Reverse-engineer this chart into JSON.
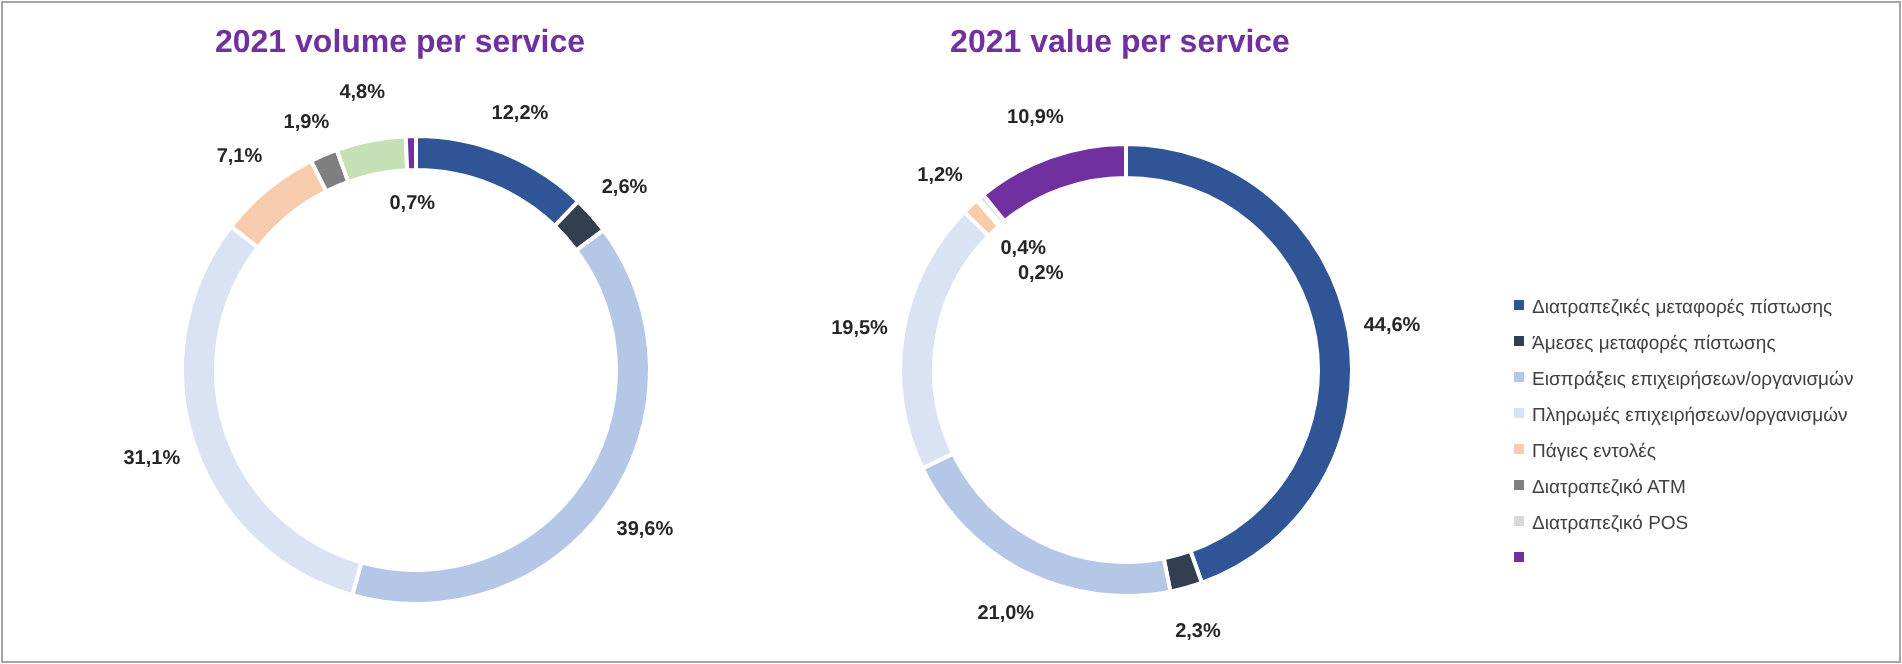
{
  "chart_data": [
    {
      "type": "donut",
      "title": "2021 volume per service",
      "categories": [
        null,
        null,
        null,
        null,
        null,
        null,
        null,
        null
      ],
      "values": [
        12.2,
        2.6,
        39.6,
        31.1,
        7.1,
        1.9,
        4.8,
        0.7
      ],
      "value_labels": [
        "12,2%",
        "2,6%",
        "39,6%",
        "31,1%",
        "7,1%",
        "1,9%",
        "4,8%",
        "0,7%"
      ],
      "colors": [
        "#2f5597",
        "#333f50",
        "#b4c7e7",
        "#dae3f3",
        "#f8cbad",
        "#7f7f7f",
        "#c5e0b4",
        "#7030a0"
      ],
      "legend": false
    },
    {
      "type": "donut",
      "title": "2021 value per service",
      "categories": [
        "Διατραπεζικές μεταφορές πίστωσης",
        "Άμεσες μεταφορές πίστωσης",
        "Εισπράξεις επιχειρήσεων/οργανισμών",
        "Πληρωμές επιχειρήσεων/οργανισμών",
        "Πάγιες εντολές",
        "Διατραπεζικό ΑΤΜ",
        "Διατραπεζικό POS",
        null
      ],
      "values": [
        44.6,
        2.3,
        21.0,
        19.5,
        1.2,
        0.2,
        0.4,
        10.9
      ],
      "value_labels": [
        "44,6%",
        "2,3%",
        "21,0%",
        "19,5%",
        "1,2%",
        "0,2%",
        "0,4%",
        "10,9%"
      ],
      "colors": [
        "#2f5597",
        "#333f50",
        "#b4c7e7",
        "#dae3f3",
        "#f8cbad",
        "#7f7f7f",
        "#d9d9d9",
        "#7030a0"
      ],
      "legend": "right"
    }
  ]
}
